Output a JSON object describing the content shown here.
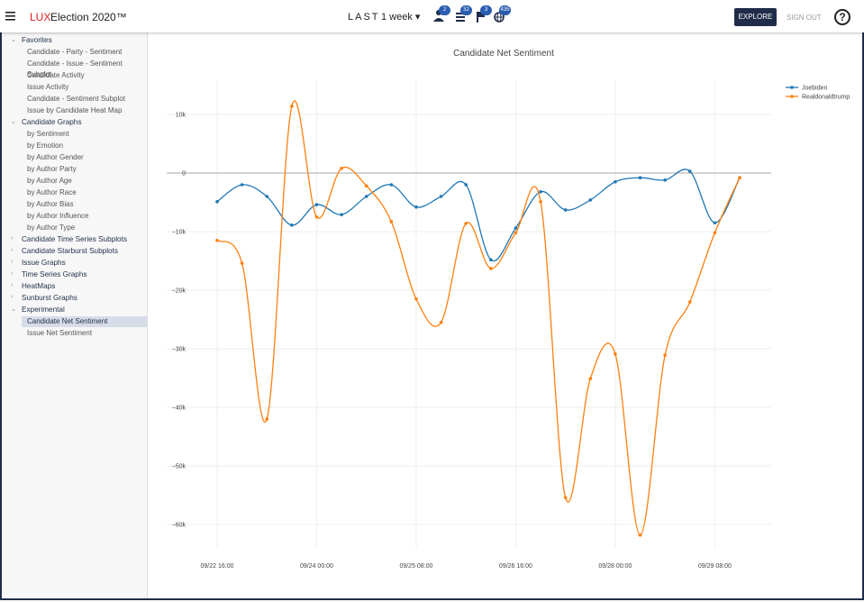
{
  "header": {
    "brand_prefix": "LUX",
    "brand": "Election 2020™",
    "range_label": "LAST",
    "range_value": "1 week",
    "badges": [
      2,
      32,
      3,
      435
    ],
    "explore": "EXPLORE",
    "sign_out": "SIGN OUT"
  },
  "sidebar": [
    {
      "label": "Favorites",
      "items": [
        "Candidate - Party - Sentiment",
        "Candidate - Issue - Sentiment Subplot",
        "Candidate Activity",
        "Issue Activity",
        "Candidate - Sentiment Subplot",
        "Issue by Candidate Heat Map"
      ]
    },
    {
      "label": "Candidate Graphs",
      "items": [
        "by Sentiment",
        "by Emotion",
        "by Author Gender",
        "by Author Party",
        "by Author Age",
        "by Author Race",
        "by Author Bias",
        "by Author Influence",
        "by Author Type"
      ]
    },
    {
      "label": "Candidate Time Series Subplots",
      "items": []
    },
    {
      "label": "Candidate Starburst Subplots",
      "items": []
    },
    {
      "label": "Issue Graphs",
      "items": []
    },
    {
      "label": "Time Series Graphs",
      "items": []
    },
    {
      "label": "HeatMaps",
      "items": []
    },
    {
      "label": "Sunburst Graphs",
      "items": []
    },
    {
      "label": "Experimental",
      "items": [
        "Candidate Net Sentiment",
        "Issue Net Sentiment"
      ]
    }
  ],
  "chart_data": {
    "type": "line",
    "title": "Candidate Net Sentiment",
    "x": [
      "09/22 16:00",
      "09/23 00:00",
      "09/23 08:00",
      "09/23 16:00",
      "09/24 00:00",
      "09/24 08:00",
      "09/24 16:00",
      "09/25 00:00",
      "09/25 08:00",
      "09/25 16:00",
      "09/26 00:00",
      "09/26 08:00",
      "09/26 16:00",
      "09/27 00:00",
      "09/27 08:00",
      "09/27 16:00",
      "09/28 00:00",
      "09/28 08:00",
      "09/28 16:00",
      "09/29 00:00",
      "09/29 08:00",
      "09/29 16:00"
    ],
    "xticks": [
      "09/22 16:00",
      "09/24 00:00",
      "09/25 08:00",
      "09/26 16:00",
      "09/28 00:00",
      "09/29 08:00"
    ],
    "ylim": [
      -64000,
      16000
    ],
    "yticks": [
      {
        "value": 10000,
        "label": "10k"
      },
      0,
      {
        "value": -10000,
        "label": "−10k"
      },
      {
        "value": -20000,
        "label": "−20k"
      },
      {
        "value": -30000,
        "label": "−30k"
      },
      {
        "value": -40000,
        "label": "−40k"
      },
      {
        "value": -50000,
        "label": "−50k"
      },
      {
        "value": -60000,
        "label": "−60k"
      }
    ],
    "grid": true,
    "smooth": true,
    "legend": "top-right",
    "series": [
      {
        "name": "Joebiden",
        "color": "#1f77b4",
        "values": [
          -4900,
          -2000,
          -4000,
          -8900,
          -5400,
          -7100,
          -4000,
          -2000,
          -5800,
          -4000,
          -2000,
          -14800,
          -9400,
          -3200,
          -6300,
          -4600,
          -1500,
          -800,
          -1200,
          300,
          -8500,
          -800
        ]
      },
      {
        "name": "Realdonaldtrump",
        "color": "#ff7f0e",
        "values": [
          -11500,
          -15400,
          -42000,
          11400,
          -7500,
          800,
          -2200,
          -8300,
          -21500,
          -25500,
          -8600,
          -16300,
          -10200,
          -4900,
          -55400,
          -35100,
          -30900,
          -61800,
          -31100,
          -22000,
          -10200,
          -800
        ]
      }
    ]
  }
}
